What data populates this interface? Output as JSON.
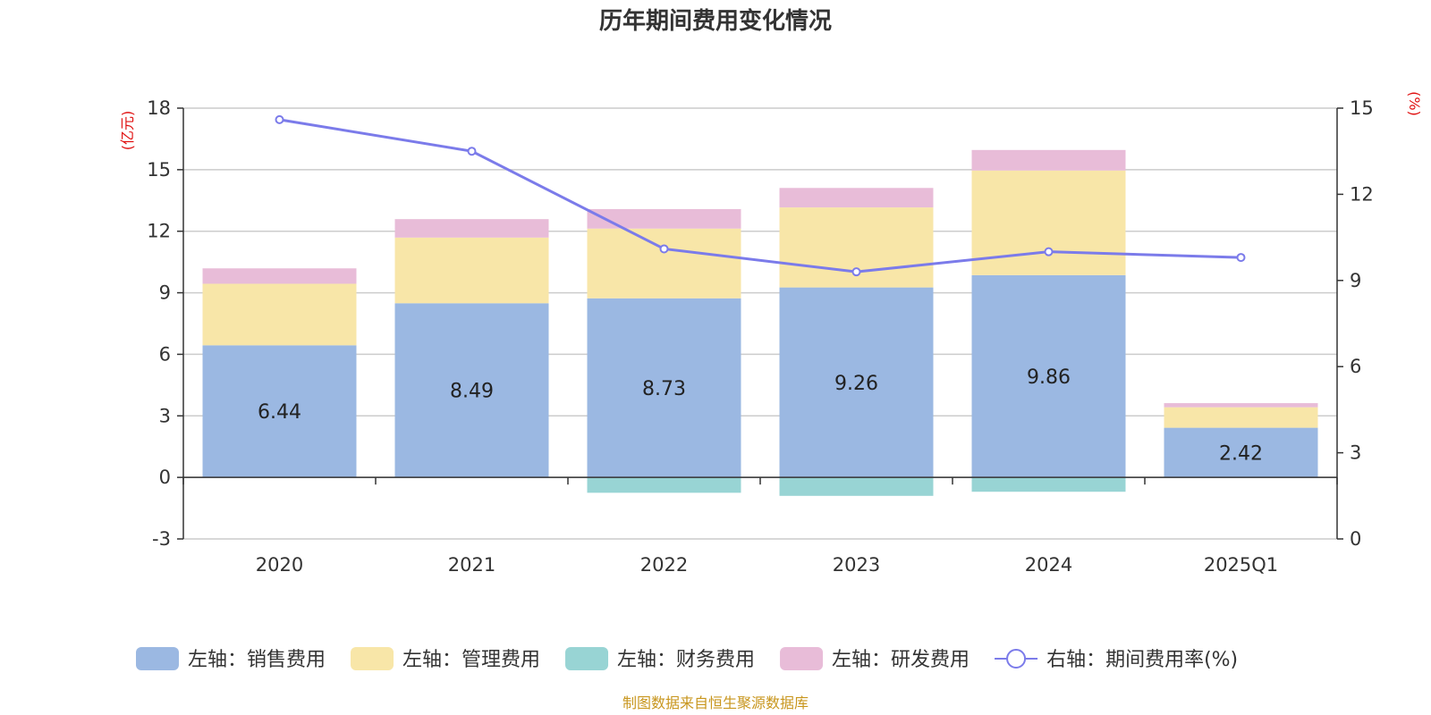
{
  "chart_data": {
    "type": "bar",
    "title": "历年期间费用变化情况",
    "categories": [
      "2020",
      "2021",
      "2022",
      "2023",
      "2024",
      "2025Q1"
    ],
    "left_axis": {
      "unit": "(亿元)",
      "ylim": [
        -3,
        18
      ],
      "ticks": [
        -3,
        0,
        3,
        6,
        9,
        12,
        15,
        18
      ]
    },
    "right_axis": {
      "unit": "(%)",
      "ylim": [
        0,
        15
      ],
      "ticks": [
        0,
        3,
        6,
        9,
        12,
        15
      ]
    },
    "series": [
      {
        "name": "销售费用",
        "legend": "左轴：销售费用",
        "axis": "left",
        "kind": "bar",
        "color": "#9bb8e2",
        "values": [
          6.44,
          8.49,
          8.73,
          9.26,
          9.86,
          2.42
        ],
        "show_labels": true
      },
      {
        "name": "管理费用",
        "legend": "左轴：管理费用",
        "axis": "left",
        "kind": "bar",
        "color": "#f8e6a8",
        "values": [
          3.0,
          3.2,
          3.4,
          3.9,
          5.1,
          1.0
        ],
        "show_labels": false
      },
      {
        "name": "财务费用",
        "legend": "左轴：财务费用",
        "axis": "left",
        "kind": "bar",
        "color": "#98d4d4",
        "values": [
          0.0,
          0.0,
          -0.75,
          -0.9,
          -0.7,
          0.0
        ],
        "show_labels": false
      },
      {
        "name": "研发费用",
        "legend": "左轴：研发费用",
        "axis": "left",
        "kind": "bar",
        "color": "#e8bcd8",
        "values": [
          0.75,
          0.9,
          0.95,
          0.95,
          1.0,
          0.2
        ],
        "show_labels": false
      },
      {
        "name": "期间费用率",
        "legend": "右轴：期间费用率(%)",
        "axis": "right",
        "kind": "line",
        "color": "#7b7bea",
        "values": [
          14.6,
          13.5,
          10.1,
          9.3,
          10.0,
          9.8
        ],
        "show_labels": false
      }
    ],
    "source": "制图数据来自恒生聚源数据库"
  }
}
